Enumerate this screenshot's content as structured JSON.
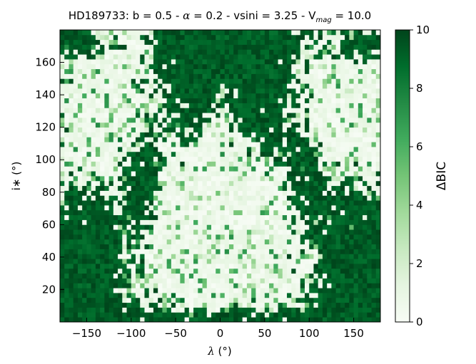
{
  "chart_data": {
    "type": "heatmap",
    "title_prefix": "HD189733:  b = 0.5 - ",
    "title_alpha": "α",
    "title_mid": " = 0.2 - vsini = 3.25 - V",
    "title_sub": "mag",
    "title_end": " = 10.0",
    "xlabel_sym": "λ",
    "xlabel_unit": " (°)",
    "ylabel": "i∗ (°)",
    "colorbar_label": "ΔBIC",
    "colormap": "Greens",
    "colors": {
      "low": "#f7fcf5",
      "mid": "#74c476",
      "high": "#00441b"
    },
    "xlim": [
      -180,
      180
    ],
    "ylim": [
      0,
      180
    ],
    "zlim": [
      0,
      10
    ],
    "x_ticks": [
      -150,
      -100,
      -50,
      0,
      50,
      100,
      150
    ],
    "y_ticks": [
      20,
      40,
      60,
      80,
      100,
      120,
      140,
      160
    ],
    "cbar_ticks": [
      0,
      2,
      4,
      6,
      8,
      10
    ],
    "x_tick_labels": [
      "−150",
      "−100",
      "−50",
      "0",
      "50",
      "100",
      "150"
    ],
    "y_tick_labels": [
      "20",
      "40",
      "60",
      "80",
      "100",
      "120",
      "140",
      "160"
    ],
    "cbar_tick_labels": [
      "0",
      "2",
      "4",
      "6",
      "8",
      "10"
    ],
    "grid": false,
    "grid_resolution": {
      "nx": 72,
      "ny": 60
    },
    "description_of_regions": {
      "high_delta_bic_regions": [
        {
          "lambda_center": -150,
          "i_center": 35,
          "note": "lower-left dark lobe"
        },
        {
          "lambda_center": 150,
          "i_center": 35,
          "note": "lower-right dark lobe"
        },
        {
          "lambda_center": -25,
          "i_center": 150,
          "note": "upper-center dark V region"
        },
        {
          "lambda_center": 40,
          "i_center": 150,
          "note": "upper-center dark V region"
        },
        {
          "lambda_center": -90,
          "i_center": 90,
          "note": "mid-left dark band"
        },
        {
          "lambda_center": 95,
          "i_center": 90,
          "note": "mid-right dark band"
        }
      ],
      "low_delta_bic_regions": [
        {
          "lambda_center": 0,
          "i_center": 60,
          "note": "central light U region"
        },
        {
          "lambda_center": -140,
          "i_center": 130,
          "note": "upper-left light region"
        },
        {
          "lambda_center": 140,
          "i_center": 130,
          "note": "upper-right light region"
        }
      ]
    }
  }
}
